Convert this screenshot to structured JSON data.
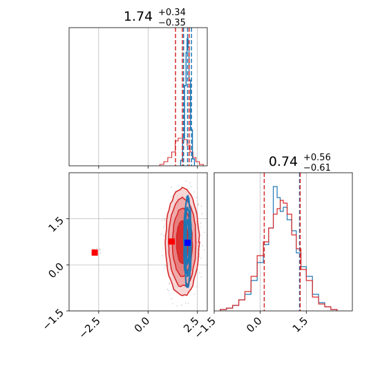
{
  "chart_data": {
    "type": "corner",
    "colors": {
      "red": "#d62728",
      "blue": "#1f77b4",
      "grid": "#b0b0b0",
      "spine": "#000000"
    },
    "panels": {
      "marginal_1": {
        "title": {
          "value": "1.74",
          "plus": "+0.34",
          "minus": "−0.35"
        },
        "xlim": [
          -4.0,
          3.0
        ],
        "xgrid": [
          -2.5,
          0.0,
          2.5
        ],
        "red_quantiles": [
          1.39,
          1.74,
          2.08
        ],
        "blue_quantiles": [
          1.8,
          2.0,
          2.2
        ],
        "red_hist": [
          [
            0.7,
            0.01
          ],
          [
            0.9,
            0.03
          ],
          [
            1.1,
            0.06
          ],
          [
            1.3,
            0.1
          ],
          [
            1.45,
            0.18
          ],
          [
            1.6,
            0.2
          ],
          [
            1.75,
            0.2
          ],
          [
            1.9,
            0.19
          ],
          [
            2.05,
            0.15
          ],
          [
            2.2,
            0.1
          ],
          [
            2.35,
            0.06
          ],
          [
            2.5,
            0.03
          ],
          [
            2.7,
            0.01
          ]
        ],
        "blue_hist": [
          [
            1.7,
            0.04
          ],
          [
            1.8,
            0.2
          ],
          [
            1.9,
            0.58
          ],
          [
            1.95,
            0.82
          ],
          [
            2.0,
            0.92
          ],
          [
            2.05,
            0.86
          ],
          [
            2.1,
            0.62
          ],
          [
            2.2,
            0.26
          ],
          [
            2.3,
            0.05
          ]
        ]
      },
      "joint": {
        "xlim": [
          -4.0,
          3.0
        ],
        "ylim": [
          -1.5,
          3.0
        ],
        "xticks": [
          "−2.5",
          "0.0",
          "2.5"
        ],
        "xtick_values": [
          -2.5,
          0.0,
          2.5
        ],
        "yticks": [
          "−1.5",
          "0.0",
          "1.5"
        ],
        "ytick_values": [
          -1.5,
          0.0,
          1.5
        ],
        "red_contours": [
          {
            "cx": 1.74,
            "cy": 0.74,
            "rx": 0.85,
            "ry": 1.75
          },
          {
            "cx": 1.74,
            "cy": 0.74,
            "rx": 0.7,
            "ry": 1.45
          },
          {
            "cx": 1.74,
            "cy": 0.74,
            "rx": 0.5,
            "ry": 1.1
          },
          {
            "cx": 1.74,
            "cy": 0.74,
            "rx": 0.3,
            "ry": 0.7
          }
        ],
        "blue_contours": [
          {
            "cx": 2.0,
            "cy": 0.76,
            "rx": 0.18,
            "ry": 1.45
          },
          {
            "cx": 2.0,
            "cy": 0.76,
            "rx": 0.12,
            "ry": 1.1
          },
          {
            "cx": 2.0,
            "cy": 0.76,
            "rx": 0.07,
            "ry": 0.7
          }
        ],
        "red_markers": [
          [
            -2.7,
            0.4
          ],
          [
            1.2,
            0.76
          ]
        ],
        "blue_markers": [
          [
            2.0,
            0.72
          ]
        ]
      },
      "marginal_2": {
        "title": {
          "value": "0.74",
          "plus": "+0.56",
          "minus": "−0.61"
        },
        "xlim": [
          -1.5,
          3.0
        ],
        "xticks": [
          "−1.5",
          "0.0",
          "1.5"
        ],
        "xtick_values": [
          -1.5,
          0.0,
          1.5
        ],
        "red_quantiles": [
          0.13,
          0.74,
          1.3
        ],
        "blue_quantiles": [
          1.28
        ],
        "red_hist": [
          [
            -1.2,
            0.01
          ],
          [
            -1.0,
            0.02
          ],
          [
            -0.8,
            0.04
          ],
          [
            -0.6,
            0.08
          ],
          [
            -0.4,
            0.14
          ],
          [
            -0.2,
            0.25
          ],
          [
            0.0,
            0.4
          ],
          [
            0.2,
            0.5
          ],
          [
            0.35,
            0.6
          ],
          [
            0.5,
            0.7
          ],
          [
            0.6,
            0.74
          ],
          [
            0.7,
            0.8
          ],
          [
            0.8,
            0.78
          ],
          [
            0.95,
            0.7
          ],
          [
            1.1,
            0.55
          ],
          [
            1.25,
            0.45
          ],
          [
            1.4,
            0.3
          ],
          [
            1.6,
            0.22
          ],
          [
            1.8,
            0.1
          ],
          [
            2.0,
            0.05
          ],
          [
            2.2,
            0.03
          ],
          [
            2.4,
            0.01
          ]
        ],
        "blue_hist": [
          [
            -1.2,
            0.01
          ],
          [
            -1.0,
            0.02
          ],
          [
            -0.8,
            0.04
          ],
          [
            -0.6,
            0.08
          ],
          [
            -0.4,
            0.12
          ],
          [
            -0.2,
            0.22
          ],
          [
            0.0,
            0.35
          ],
          [
            0.2,
            0.48
          ],
          [
            0.35,
            0.6
          ],
          [
            0.5,
            0.9
          ],
          [
            0.6,
            0.82
          ],
          [
            0.7,
            0.72
          ],
          [
            0.8,
            0.75
          ],
          [
            0.95,
            0.66
          ],
          [
            1.1,
            0.58
          ],
          [
            1.25,
            0.42
          ],
          [
            1.4,
            0.32
          ],
          [
            1.6,
            0.25
          ],
          [
            1.8,
            0.12
          ],
          [
            2.0,
            0.06
          ],
          [
            2.2,
            0.03
          ],
          [
            2.4,
            0.01
          ]
        ]
      }
    }
  }
}
